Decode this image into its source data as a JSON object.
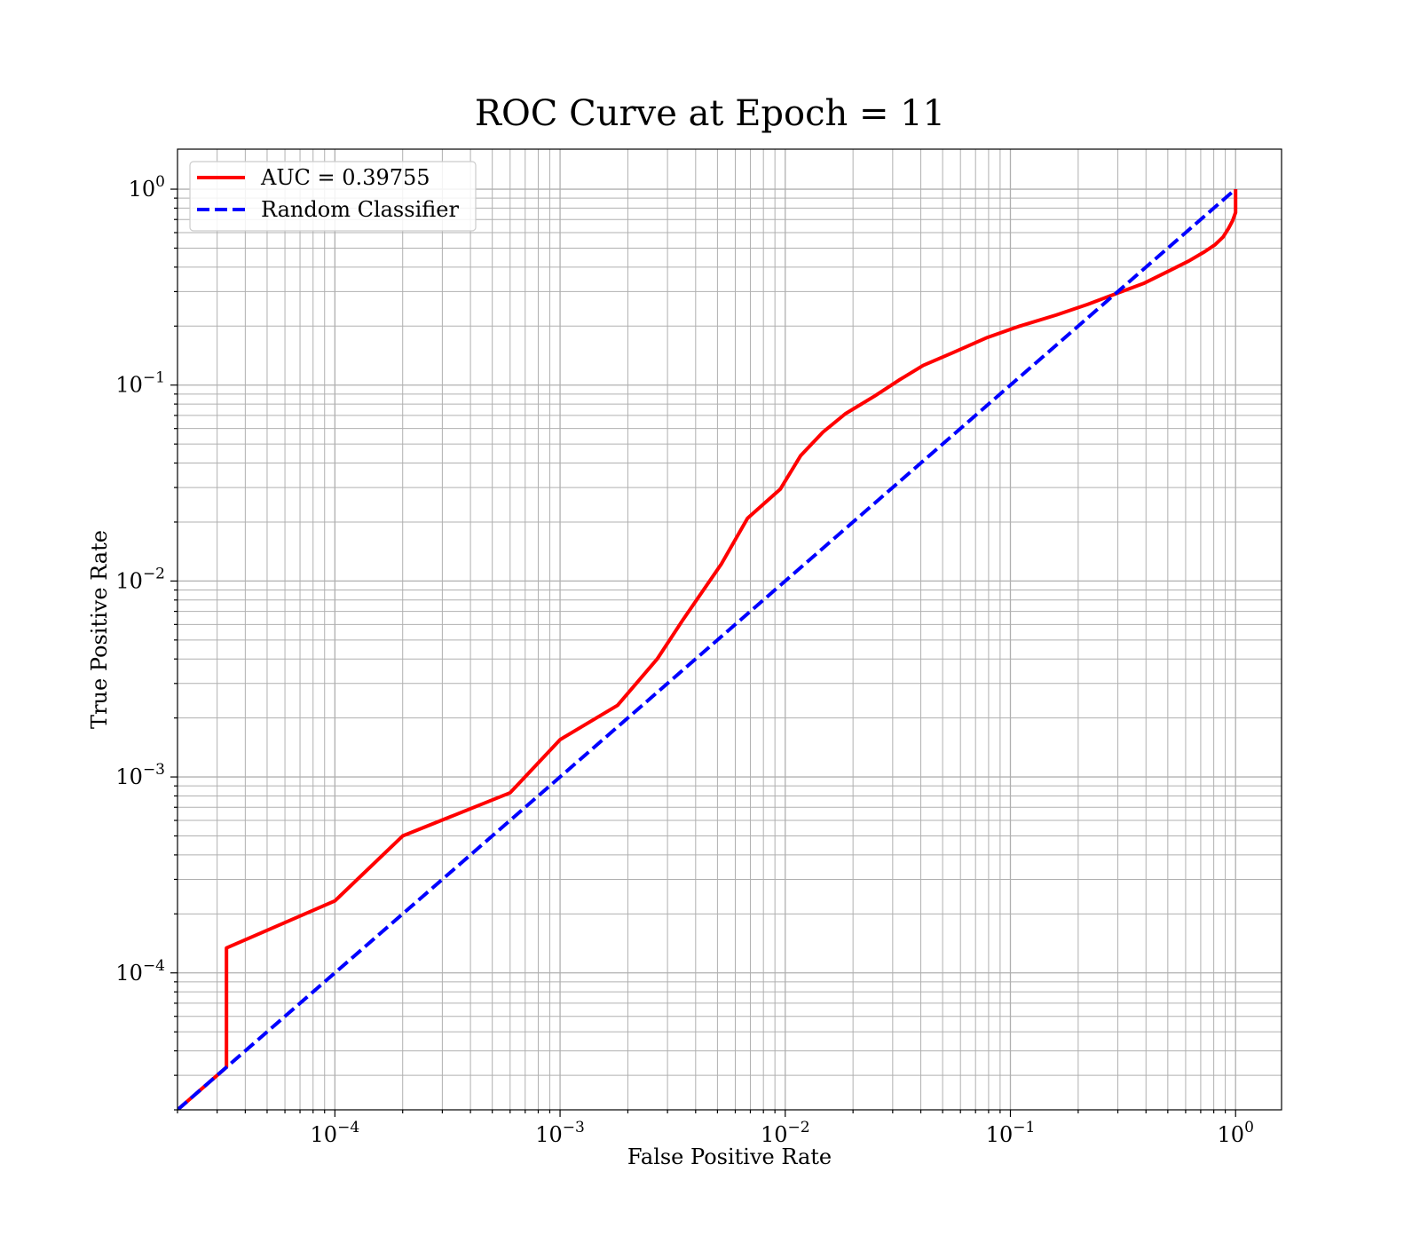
{
  "chart_data": {
    "type": "line",
    "title": "ROC Curve at Epoch = 11",
    "xlabel": "False Positive Rate",
    "ylabel": "True Positive Rate",
    "xscale": "log",
    "yscale": "log",
    "xlim": [
      2e-05,
      1.6
    ],
    "ylim": [
      2e-05,
      1.6
    ],
    "grid": "major and minor",
    "legend_position": "upper-left",
    "x_tick_labels": [
      {
        "base": "10",
        "exp": "−4",
        "value": 0.0001
      },
      {
        "base": "10",
        "exp": "−3",
        "value": 0.001
      },
      {
        "base": "10",
        "exp": "−2",
        "value": 0.01
      },
      {
        "base": "10",
        "exp": "−1",
        "value": 0.1
      },
      {
        "base": "10",
        "exp": "0",
        "value": 1
      }
    ],
    "y_tick_labels": [
      {
        "base": "10",
        "exp": "−4",
        "value": 0.0001
      },
      {
        "base": "10",
        "exp": "−3",
        "value": 0.001
      },
      {
        "base": "10",
        "exp": "−2",
        "value": 0.01
      },
      {
        "base": "10",
        "exp": "−1",
        "value": 0.1
      },
      {
        "base": "10",
        "exp": "0",
        "value": 1
      }
    ],
    "series": [
      {
        "name": "AUC = 0.39755",
        "color": "#ff0000",
        "linestyle": "solid",
        "x": [
          2e-05,
          3.3e-05,
          3.3e-05,
          0.0001,
          0.0002,
          0.0006,
          0.001,
          0.0018,
          0.0027,
          0.0035,
          0.0052,
          0.0068,
          0.0095,
          0.0117,
          0.0147,
          0.0185,
          0.025,
          0.032,
          0.041,
          0.056,
          0.079,
          0.11,
          0.16,
          0.22,
          0.3,
          0.39,
          0.5,
          0.62,
          0.73,
          0.81,
          0.88,
          0.93,
          0.97,
          1.0,
          1.0
        ],
        "y": [
          2e-05,
          3.3e-05,
          0.000134,
          0.000233,
          0.0005,
          0.00083,
          0.00155,
          0.00232,
          0.004,
          0.0063,
          0.0122,
          0.0209,
          0.0294,
          0.0436,
          0.0575,
          0.0714,
          0.088,
          0.106,
          0.126,
          0.147,
          0.175,
          0.2,
          0.228,
          0.258,
          0.295,
          0.33,
          0.38,
          0.43,
          0.48,
          0.52,
          0.57,
          0.63,
          0.69,
          0.76,
          1.0
        ]
      },
      {
        "name": "Random Classifier",
        "color": "#0000ff",
        "linestyle": "dashed",
        "x": [
          2e-05,
          1.0
        ],
        "y": [
          2e-05,
          1.0
        ]
      }
    ]
  }
}
